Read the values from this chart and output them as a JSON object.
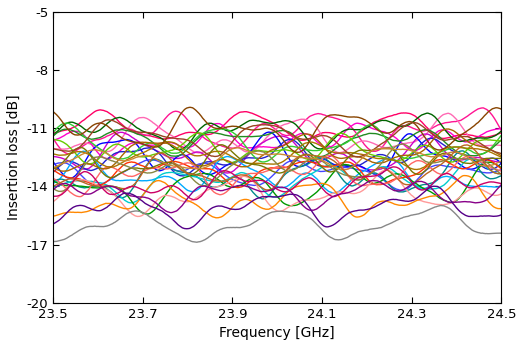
{
  "xlim": [
    23.5,
    24.5
  ],
  "ylim": [
    -20,
    -5
  ],
  "xlabel": "Frequency [GHz]",
  "ylabel": "Insertion loss [dB]",
  "xticks": [
    23.5,
    23.7,
    23.9,
    24.1,
    24.3,
    24.5
  ],
  "yticks": [
    -20,
    -17,
    -14,
    -11,
    -8,
    -5
  ],
  "num_points": 400,
  "num_lines": 32,
  "seed": 42,
  "line_colors": [
    "#FF0066",
    "#FF1493",
    "#FF69B4",
    "#FF00CC",
    "#CC00CC",
    "#0000FF",
    "#2222CC",
    "#4444FF",
    "#00AAFF",
    "#008B8B",
    "#00CCCC",
    "#009900",
    "#006400",
    "#228B22",
    "#33CC33",
    "#66CC00",
    "#FF3300",
    "#FF6666",
    "#FF9999",
    "#FF8800",
    "#AA7700",
    "#AA6600",
    "#777700",
    "#888844",
    "#884400",
    "#994422",
    "#CC8833",
    "#BB6622",
    "#CC0066",
    "#880088",
    "#550088",
    "#888888"
  ],
  "line_width": 1.0,
  "mean_values": [
    -11.0,
    -11.3,
    -11.6,
    -11.9,
    -12.2,
    -12.5,
    -12.8,
    -13.1,
    -13.4,
    -13.7,
    -14.0,
    -14.3,
    -11.2,
    -11.5,
    -11.8,
    -12.1,
    -13.2,
    -13.5,
    -14.6,
    -14.9,
    -12.3,
    -12.6,
    -13.0,
    -13.3,
    -11.1,
    -11.4,
    -12.7,
    -13.6,
    -14.2,
    -14.5,
    -15.3,
    -16.2
  ]
}
